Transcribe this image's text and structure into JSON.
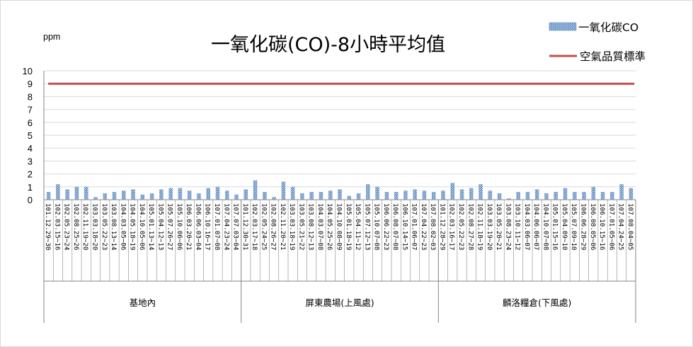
{
  "chart_data": {
    "type": "bar",
    "title": "一氧化碳(CO)-8小時平均值",
    "unit_label": "ppm",
    "ylim": [
      0,
      10
    ],
    "yticks": [
      0,
      1,
      2,
      3,
      4,
      5,
      6,
      7,
      8,
      9,
      10
    ],
    "grid": true,
    "legend_position": "top-right",
    "colors": {
      "bar": "#4f81bd",
      "standard_line": "#c0504d",
      "grid": "#d9d9d9",
      "axis": "#868686"
    },
    "groups": [
      {
        "name": "基地內",
        "categories": [
          "101.12.29~30",
          "102.03.15~16",
          "102.05.23~24",
          "102.08.25~26",
          "102.11.19~20",
          "103.03.18~20",
          "103.05.22~23",
          "103.08.13~14",
          "104.03.05~06",
          "104.05.18~19",
          "104.10.05~06",
          "105.01.13~14",
          "105.04.12~13",
          "105.07.26~27",
          "105.10.06~06",
          "106.03.20~21",
          "106.06.03~04",
          "106.10.16~17",
          "107.01.07~08",
          "107.04.23~24",
          "107.07.03~04"
        ],
        "values": [
          0.6,
          1.2,
          0.8,
          1.0,
          1.0,
          0.2,
          0.5,
          0.6,
          0.7,
          0.8,
          0.4,
          0.5,
          0.8,
          0.9,
          0.9,
          0.7,
          0.5,
          0.9,
          1.0,
          0.7,
          0.4
        ]
      },
      {
        "name": "屏東農場(上風處)",
        "categories": [
          "101.12.30~31",
          "102.03.17~18",
          "102.05.24~25",
          "102.08.26~27",
          "102.11.20~21",
          "103.03.18~19",
          "103.05.21~22",
          "103.08.12~13",
          "104.03.07~08",
          "104.05.25~26",
          "104.10.08~09",
          "105.01.18~19",
          "105.04.11~12",
          "105.07.12~13",
          "105.10.07~08",
          "106.06.22~23",
          "106.08.07~08",
          "106.10.14~15",
          "107.01.06~07",
          "107.04.22~23",
          "107.08.02~03"
        ],
        "values": [
          0.8,
          1.5,
          0.6,
          0.2,
          1.4,
          1.0,
          0.5,
          0.6,
          0.6,
          0.7,
          0.8,
          0.3,
          0.5,
          1.2,
          1.0,
          0.6,
          0.6,
          0.7,
          0.8,
          0.7,
          0.6
        ]
      },
      {
        "name": "麟洛糧倉(下風處)",
        "categories": [
          "101.12.28~29",
          "102.03.16~17",
          "102.05.22~23",
          "102.08.27~28",
          "102.11.18~19",
          "103.03.19~20",
          "103.05.20~21",
          "103.08.23~24",
          "103.10.11~12",
          "104.03.06~07",
          "104.06.06~07",
          "104.10.07~08",
          "105.01.15~16",
          "105.04.09~10",
          "105.07.09~10",
          "106.06.28~29",
          "106.08.05~06",
          "106.10.15~16",
          "107.01.05~06",
          "107.04.24~25",
          "107.08.04~05"
        ],
        "values": [
          0.7,
          1.3,
          0.8,
          0.9,
          1.2,
          0.7,
          0.5,
          0.1,
          0.6,
          0.6,
          0.8,
          0.5,
          0.6,
          0.9,
          0.6,
          0.6,
          1.0,
          0.6,
          0.6,
          1.2,
          0.9
        ]
      }
    ],
    "series": [
      {
        "name": "一氧化碳CO",
        "kind": "bar"
      },
      {
        "name": "空氣品質標準",
        "kind": "line",
        "value": 9
      }
    ]
  }
}
